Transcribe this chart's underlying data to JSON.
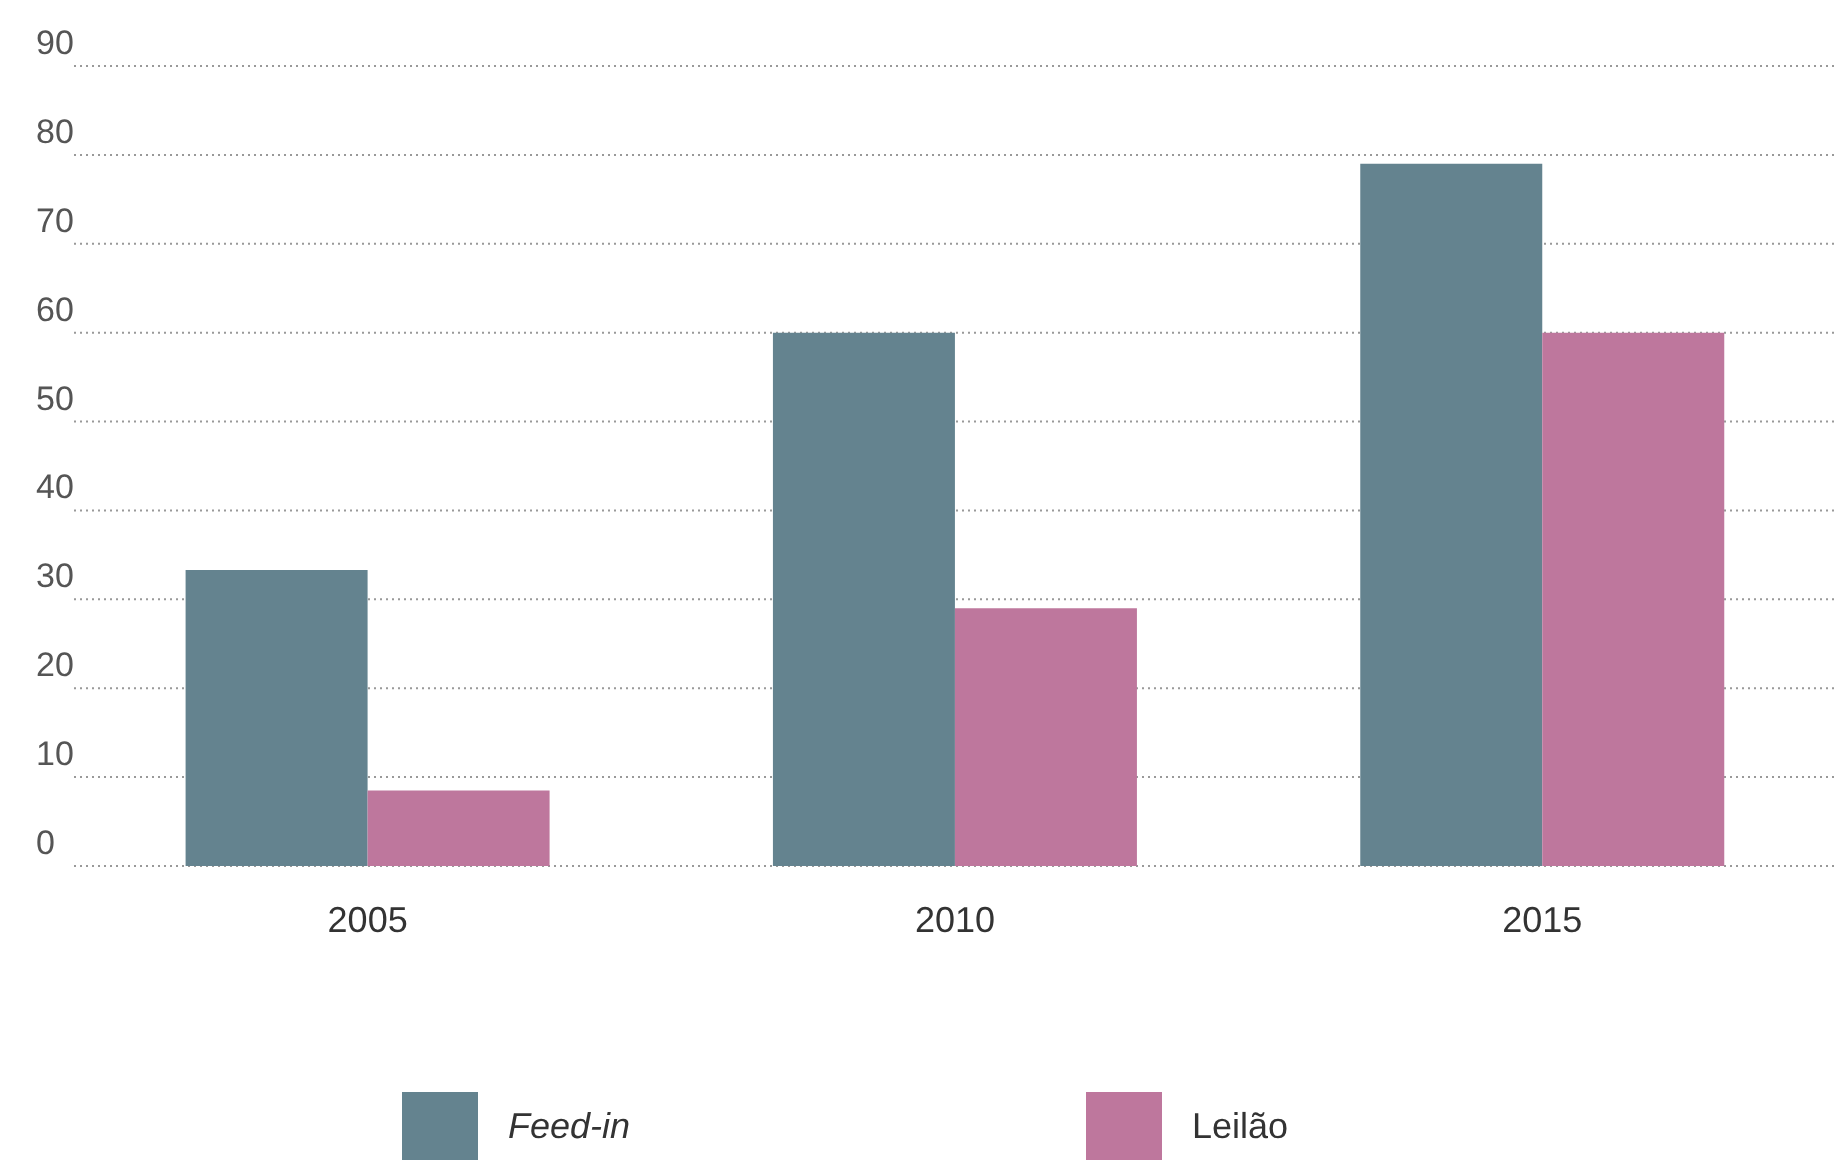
{
  "chart_data": {
    "type": "bar",
    "categories": [
      "2005",
      "2010",
      "2015"
    ],
    "series": [
      {
        "name": "Feed-in",
        "color": "#64838f",
        "values": [
          33.3,
          60,
          79
        ]
      },
      {
        "name": "Leilão",
        "color": "#be779d",
        "values": [
          8.5,
          29,
          60
        ]
      }
    ],
    "ylim": [
      0,
      90
    ],
    "yticks": [
      0,
      10,
      20,
      30,
      40,
      50,
      60,
      70,
      80,
      90
    ],
    "grid": "y",
    "legend": "bottom"
  }
}
